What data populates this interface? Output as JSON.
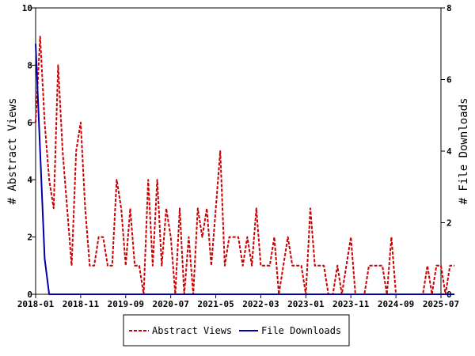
{
  "chart_data": {
    "type": "line",
    "xlabel": "",
    "ylabel": "# Abstract Views",
    "y2label": "# File Downloads",
    "ylim": [
      0,
      10
    ],
    "y2lim": [
      0,
      8
    ],
    "yticks": [
      "0",
      "2",
      "4",
      "6",
      "8",
      "10"
    ],
    "y2ticks": [
      "0",
      "2",
      "4",
      "6",
      "8"
    ],
    "xticks": [
      "2018-01",
      "2018-11",
      "2019-09",
      "2020-07",
      "2021-05",
      "2022-03",
      "2023-01",
      "2023-11",
      "2024-09",
      "2025-07"
    ],
    "x_start": "2018-01",
    "grid": false,
    "legend_position": "bottom-center",
    "series": [
      {
        "name": "Abstract Views",
        "axis": "left",
        "color": "#cc0000",
        "style": "dashed",
        "values": [
          6,
          9,
          6,
          4,
          3,
          8,
          5,
          3,
          1,
          5,
          6,
          3,
          1,
          1,
          2,
          2,
          1,
          1,
          4,
          3,
          1,
          3,
          1,
          1,
          0,
          4,
          1,
          4,
          1,
          3,
          2,
          0,
          3,
          0,
          2,
          0,
          3,
          2,
          3,
          1,
          3,
          5,
          1,
          2,
          2,
          2,
          1,
          2,
          1,
          3,
          1,
          1,
          1,
          2,
          0,
          1,
          2,
          1,
          1,
          1,
          0,
          3,
          1,
          1,
          1,
          0,
          0,
          1,
          0,
          1,
          2,
          0,
          0,
          0,
          1,
          1,
          1,
          1,
          0,
          2,
          0,
          0,
          0,
          0,
          0,
          0,
          0,
          1,
          0,
          1,
          1,
          0,
          1,
          1
        ]
      },
      {
        "name": "File Downloads",
        "axis": "right",
        "color": "#0000aa",
        "style": "solid",
        "values": [
          7,
          4,
          1,
          0,
          0,
          0,
          0,
          0,
          0,
          0,
          0,
          0,
          0,
          0,
          0,
          0,
          0,
          0,
          0,
          0,
          0,
          0,
          0,
          0,
          0,
          0,
          0,
          0,
          0,
          0,
          0,
          0,
          0,
          0,
          0,
          0,
          0,
          0,
          0,
          0,
          0,
          0,
          0,
          0,
          0,
          0,
          0,
          0,
          0,
          0,
          0,
          0,
          0,
          0,
          0,
          0,
          0,
          0,
          0,
          0,
          0,
          0,
          0,
          0,
          0,
          0,
          0,
          0,
          0,
          0,
          0,
          0,
          0,
          0,
          0,
          0,
          0,
          0,
          0,
          0,
          0,
          0,
          0,
          0,
          0,
          0,
          0,
          0,
          0,
          0,
          0,
          0,
          0,
          0
        ]
      }
    ]
  }
}
